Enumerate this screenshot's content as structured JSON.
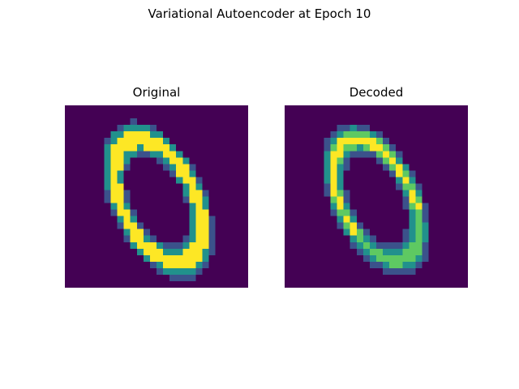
{
  "figure": {
    "suptitle": "Variational Autoencoder at Epoch 10"
  },
  "panels": [
    {
      "title": "Original",
      "image_kind": "mnist-digit-zero-original",
      "colormap": "viridis"
    },
    {
      "title": "Decoded",
      "image_kind": "mnist-digit-zero-reconstruction",
      "colormap": "viridis"
    }
  ],
  "colors": {
    "background": "#440154",
    "low": "#3b528b",
    "mid": "#21918c",
    "high": "#5ec962",
    "peak": "#fde725"
  }
}
